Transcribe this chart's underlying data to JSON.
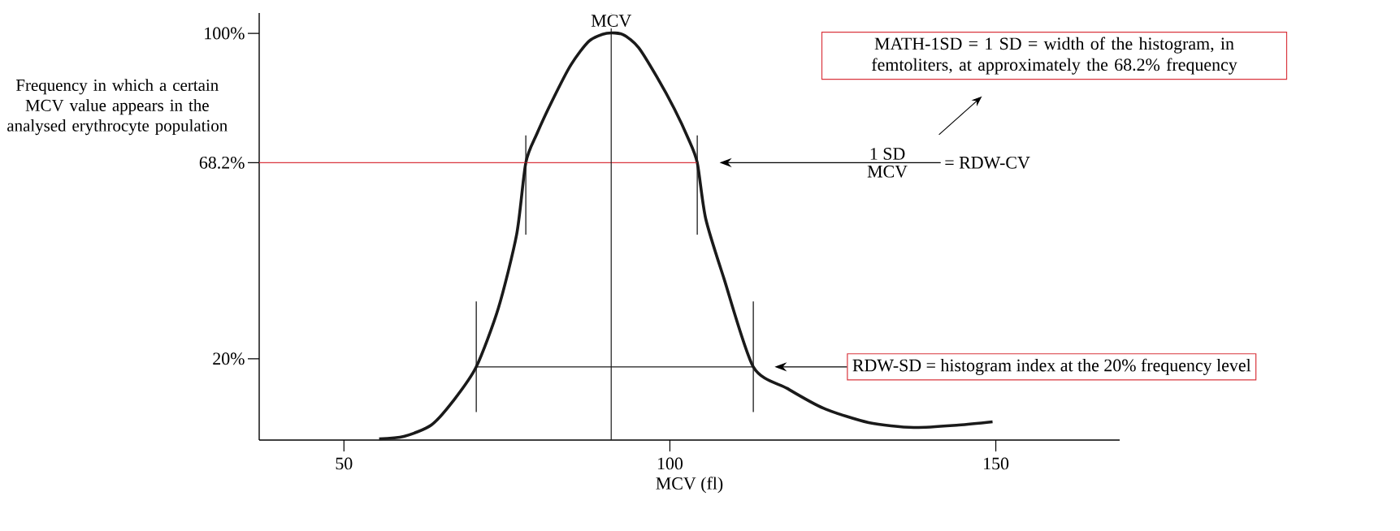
{
  "chart_data": {
    "type": "line",
    "xlabel": "MCV (fl)",
    "ylabel": "Frequency in which a certain MCV value appears in the analysed erythrocyte population",
    "xlim": [
      37,
      169
    ],
    "ylim": [
      0,
      105
    ],
    "xticks": [
      50,
      100,
      150
    ],
    "yticks": [
      {
        "value": 20,
        "label": "20%"
      },
      {
        "value": 68.2,
        "label": "68.2%"
      },
      {
        "value": 100,
        "label": "100%"
      }
    ],
    "marker": "none",
    "line_style": "solid",
    "series": [
      {
        "color": "#1a1a1a",
        "x": [
          55.4,
          59.2,
          63.4,
          66.8,
          70.3,
          73.7,
          76.5,
          77.9,
          79.6,
          82.0,
          84.8,
          87.6,
          90.3,
          92.8,
          95.2,
          98.0,
          100.7,
          102.8,
          104.2,
          105.5,
          108.3,
          112.8,
          118.0,
          123.6,
          130.5,
          137.4,
          144.3,
          149.5
        ],
        "values": [
          0.3,
          0.9,
          3.7,
          9.7,
          18,
          32.5,
          50.6,
          68.2,
          75.3,
          83.6,
          92.2,
          98.1,
          100,
          99.7,
          96.5,
          89.3,
          81.4,
          74.2,
          68.2,
          54.4,
          39.7,
          18,
          12.7,
          7.8,
          4.3,
          3.1,
          3.7,
          4.5
        ]
      },
      {
        "color": "#d9363e",
        "x": [
          37,
          104.2
        ],
        "values": [
          68.2,
          68.2
        ]
      },
      {
        "color": "#1a1a1a",
        "x": [
          70.3,
          112.8
        ],
        "values": [
          18,
          18
        ]
      },
      {
        "color": "#1a1a1a",
        "x": [
          77.9,
          77.9
        ],
        "values": [
          50.5,
          74.9
        ]
      },
      {
        "color": "#1a1a1a",
        "x": [
          104.2,
          104.2
        ],
        "values": [
          50.5,
          74.9
        ]
      },
      {
        "color": "#1a1a1a",
        "x": [
          70.3,
          70.3
        ],
        "values": [
          6.9,
          34.1
        ]
      },
      {
        "color": "#1a1a1a",
        "x": [
          112.8,
          112.8
        ],
        "values": [
          6.9,
          34.1
        ]
      }
    ],
    "ref_lines": [
      {
        "axis": "x",
        "value": 91,
        "label": "MCV",
        "color": "#1a1a1a"
      }
    ],
    "annotations": [
      "MATH-1SD = 1 SD = width of the histogram, in femtoliters, at approximately the 68.2% frequency",
      "1 SD",
      "MCV",
      "= RDW-CV",
      "RDW-SD = histogram index at the 20% frequency level"
    ]
  }
}
